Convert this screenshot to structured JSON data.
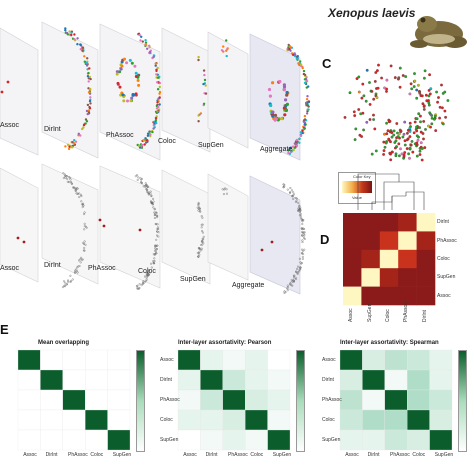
{
  "species_title": "Xenopus laevis",
  "panel_letters": {
    "c": "C",
    "d": "D",
    "e": "E"
  },
  "top_layers": [
    "Assoc",
    "DirInt",
    "PhAssoc",
    "Coloc",
    "SupGen",
    "Aggregate"
  ],
  "mid_layers": [
    "Assoc",
    "DirInt",
    "PhAssoc",
    "Coloc",
    "SupGen",
    "Aggregate"
  ],
  "legend_d": {
    "title": "Color Key",
    "xlabel": "Value"
  },
  "matrix_d": {
    "row_labels": [
      "DirInt",
      "PhAssoc",
      "Coloc",
      "SupGen",
      "Assoc"
    ],
    "col_labels": [
      "Assoc",
      "SupGen",
      "Coloc",
      "PhAssoc",
      "DirInt"
    ]
  },
  "heatmaps_e": [
    {
      "title": "Mean overlapping",
      "row_labels": [
        "Assoc",
        "DirInt",
        "PhAssoc",
        "Coloc",
        "SupGen"
      ],
      "col_labels": [
        "Assoc",
        "DirInt",
        "PhAssoc",
        "Coloc",
        "SupGen"
      ]
    },
    {
      "title": "Inter-layer assortativity: Pearson",
      "row_labels": [
        "Assoc",
        "DirInt",
        "PhAssoc",
        "Coloc",
        "SupGen"
      ],
      "col_labels": [
        "Assoc",
        "DirInt",
        "PhAssoc",
        "Coloc",
        "SupGen"
      ]
    },
    {
      "title": "Inter-layer assortativity: Spearman",
      "row_labels": [
        "Assoc",
        "DirInt",
        "PhAssoc",
        "Coloc",
        "SupGen"
      ],
      "col_labels": [
        "Assoc",
        "DirInt",
        "PhAssoc",
        "Coloc",
        "SupGen"
      ]
    }
  ],
  "colors": {
    "dark_green": "#0b5e2c",
    "mid_green": "#7fc79a",
    "light_green": "#dff3e6",
    "dark_red": "#8b1a1a",
    "cream": "#fff7c2"
  }
}
